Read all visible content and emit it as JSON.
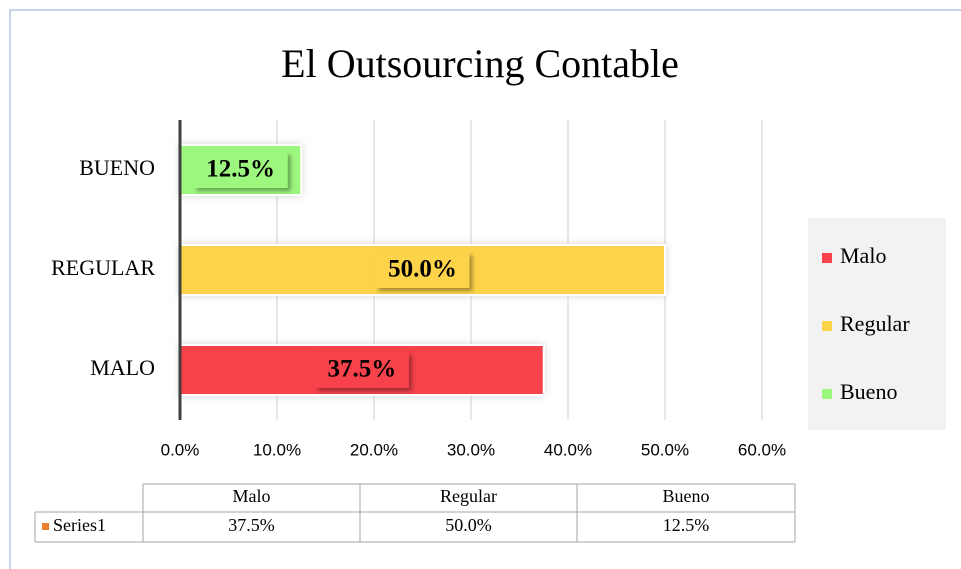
{
  "chart_data": {
    "type": "hbar",
    "title": "El Outsourcing Contable",
    "categories": [
      "MALO",
      "REGULAR",
      "BUENO"
    ],
    "values": [
      37.5,
      50.0,
      12.5
    ],
    "value_labels": [
      "37.5%",
      "50.0%",
      "12.5%"
    ],
    "colors": [
      "#f7434b",
      "#fdd34a",
      "#9df77e"
    ],
    "xlim": [
      0,
      60
    ],
    "xticks": [
      {
        "value": 0,
        "label": "0.0%"
      },
      {
        "value": 10,
        "label": "10.0%"
      },
      {
        "value": 20,
        "label": "20.0%"
      },
      {
        "value": 30,
        "label": "30.0%"
      },
      {
        "value": 40,
        "label": "40.0%"
      },
      {
        "value": 50,
        "label": "50.0%"
      },
      {
        "value": 60,
        "label": "60.0%"
      }
    ],
    "grid": true,
    "legend": [
      {
        "name": "Malo",
        "color": "#f7434b"
      },
      {
        "name": "Regular",
        "color": "#fdd34a"
      },
      {
        "name": "Bueno",
        "color": "#9df77e"
      }
    ],
    "legend_position": "right",
    "data_table": {
      "columns": [
        "Malo",
        "Regular",
        "Bueno"
      ],
      "series_name": "Series1",
      "series_color": "#ed7d31",
      "cells": [
        "37.5%",
        "50.0%",
        "12.5%"
      ]
    }
  }
}
